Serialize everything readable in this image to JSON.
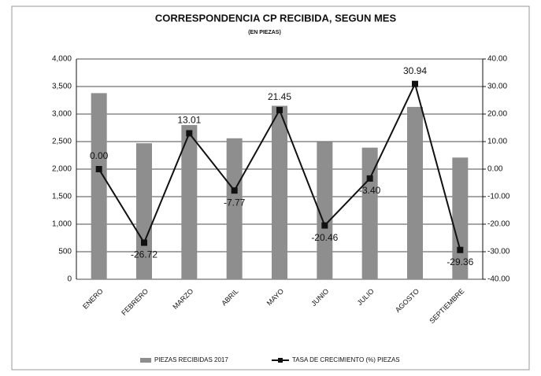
{
  "chart_data": {
    "type": "bar",
    "title": "CORRESPONDENCIA CP RECIBIDA, SEGUN MES",
    "subtitle": "(EN PIEZAS)",
    "categories": [
      "ENERO",
      "FEBRERO",
      "MARZO",
      "ABRIL",
      "MAYO",
      "JUNIO",
      "JULIO",
      "AGOSTO",
      "SEPTIEMBRE"
    ],
    "series": [
      {
        "name": "PIEZAS RECIBIDAS 2017",
        "type": "bar",
        "color": "#8e8e8e",
        "values": [
          3380,
          2470,
          2800,
          2560,
          3150,
          2490,
          2390,
          3130,
          2210
        ]
      },
      {
        "name": "TASA DE CRECIMIENTO  (%) PIEZAS",
        "type": "line",
        "axis": "y2",
        "color": "#111111",
        "values": [
          0.0,
          -26.72,
          13.01,
          -7.77,
          21.45,
          -20.46,
          -3.4,
          30.94,
          -29.36
        ],
        "value_labels": [
          "0.00",
          "-26.72",
          "13.01",
          "-7.77",
          "21.45",
          "-20.46",
          "-3.40",
          "30.94",
          "-29.36"
        ]
      }
    ],
    "ylim": [
      0,
      4000
    ],
    "yticks": [
      0,
      500,
      {
        "value": 1000,
        "label": "1,000"
      },
      {
        "value": 1500,
        "label": "1,500"
      },
      {
        "value": 2000,
        "label": "2,000"
      },
      {
        "value": 2500,
        "label": "2,500"
      },
      {
        "value": 3000,
        "label": "3,000"
      },
      {
        "value": 3500,
        "label": "3,500"
      },
      {
        "value": 4000,
        "label": "4,000"
      }
    ],
    "y2lim": [
      -40,
      40
    ],
    "y2ticks": [
      {
        "value": -40,
        "label": "-40.00"
      },
      {
        "value": -30,
        "label": "-30.00"
      },
      {
        "value": -20,
        "label": "-20.00"
      },
      {
        "value": -10,
        "label": "-10.00"
      },
      {
        "value": 0,
        "label": "0.00"
      },
      {
        "value": 10,
        "label": "10.00"
      },
      {
        "value": 20,
        "label": "20.00"
      },
      {
        "value": 30,
        "label": "30.00"
      },
      {
        "value": 40,
        "label": "40.00"
      }
    ],
    "grid": true
  }
}
